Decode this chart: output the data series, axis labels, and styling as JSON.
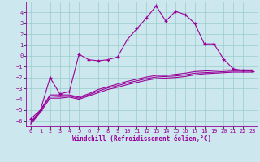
{
  "xlabel": "Windchill (Refroidissement éolien,°C)",
  "background_color": "#cce8ee",
  "grid_color": "#99cccc",
  "line_color": "#990099",
  "xlim": [
    -0.5,
    23.5
  ],
  "ylim": [
    -6.5,
    5.0
  ],
  "xticks": [
    0,
    1,
    2,
    3,
    4,
    5,
    6,
    7,
    8,
    9,
    10,
    11,
    12,
    13,
    14,
    15,
    16,
    17,
    18,
    19,
    20,
    21,
    22,
    23
  ],
  "yticks": [
    -6,
    -5,
    -4,
    -3,
    -2,
    -1,
    0,
    1,
    2,
    3,
    4
  ],
  "series1_x": [
    0,
    1,
    2,
    3,
    4,
    5,
    6,
    7,
    8,
    9,
    10,
    11,
    12,
    13,
    14,
    15,
    16,
    17,
    18,
    19,
    20,
    21,
    22,
    23
  ],
  "series1_y": [
    -5.8,
    -5.0,
    -2.0,
    -3.5,
    -3.3,
    0.15,
    -0.35,
    -0.45,
    -0.35,
    -0.1,
    1.5,
    2.5,
    3.5,
    4.6,
    3.2,
    4.1,
    3.8,
    3.0,
    1.1,
    1.1,
    -0.3,
    -1.2,
    -1.35,
    -1.4
  ],
  "series2_x": [
    0,
    1,
    2,
    3,
    4,
    5,
    6,
    7,
    8,
    9,
    10,
    11,
    12,
    13,
    14,
    15,
    16,
    17,
    18,
    19,
    20,
    21,
    22,
    23
  ],
  "series2_y": [
    -6.1,
    -5.0,
    -3.6,
    -3.6,
    -3.6,
    -3.8,
    -3.5,
    -3.1,
    -2.85,
    -2.6,
    -2.35,
    -2.15,
    -1.95,
    -1.8,
    -1.8,
    -1.7,
    -1.6,
    -1.45,
    -1.4,
    -1.35,
    -1.3,
    -1.3,
    -1.3,
    -1.3
  ],
  "series3_x": [
    0,
    1,
    2,
    3,
    4,
    5,
    6,
    7,
    8,
    9,
    10,
    11,
    12,
    13,
    14,
    15,
    16,
    17,
    18,
    19,
    20,
    21,
    22,
    23
  ],
  "series3_y": [
    -6.3,
    -5.2,
    -3.9,
    -3.9,
    -3.8,
    -4.0,
    -3.7,
    -3.4,
    -3.1,
    -2.9,
    -2.65,
    -2.45,
    -2.25,
    -2.1,
    -2.05,
    -2.0,
    -1.9,
    -1.75,
    -1.65,
    -1.6,
    -1.55,
    -1.5,
    -1.5,
    -1.5
  ],
  "series4_x": [
    0,
    1,
    2,
    3,
    4,
    5,
    6,
    7,
    8,
    9,
    10,
    11,
    12,
    13,
    14,
    15,
    16,
    17,
    18,
    19,
    20,
    21,
    22,
    23
  ],
  "series4_y": [
    -6.2,
    -5.1,
    -3.7,
    -3.75,
    -3.7,
    -3.9,
    -3.6,
    -3.25,
    -2.95,
    -2.75,
    -2.5,
    -2.3,
    -2.1,
    -1.95,
    -1.9,
    -1.85,
    -1.75,
    -1.6,
    -1.55,
    -1.5,
    -1.45,
    -1.4,
    -1.4,
    -1.4
  ]
}
